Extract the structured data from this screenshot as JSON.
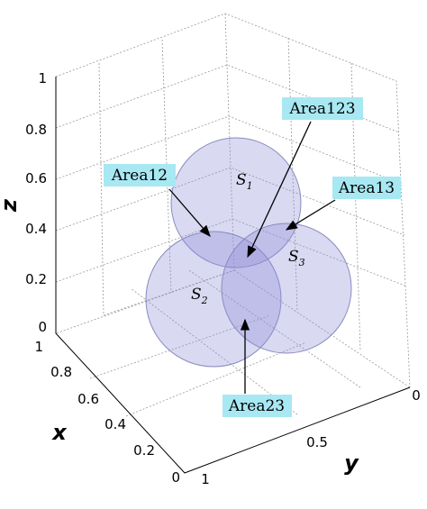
{
  "z_axis": {
    "label": "z",
    "ticks": [
      "1",
      "0.8",
      "0.6",
      "0.4",
      "0.2",
      "0"
    ]
  },
  "x_axis": {
    "label": "x",
    "ticks": [
      "1",
      "0.8",
      "0.6",
      "0.4",
      "0.2",
      "0"
    ]
  },
  "y_axis": {
    "label": "y",
    "ticks": [
      "1",
      "0.5",
      "0"
    ]
  },
  "spheres": [
    {
      "name": "S",
      "subscript": "1"
    },
    {
      "name": "S",
      "subscript": "2"
    },
    {
      "name": "S",
      "subscript": "3"
    }
  ],
  "annotations": [
    "Area12",
    "Area123",
    "Area13",
    "Area23"
  ]
}
